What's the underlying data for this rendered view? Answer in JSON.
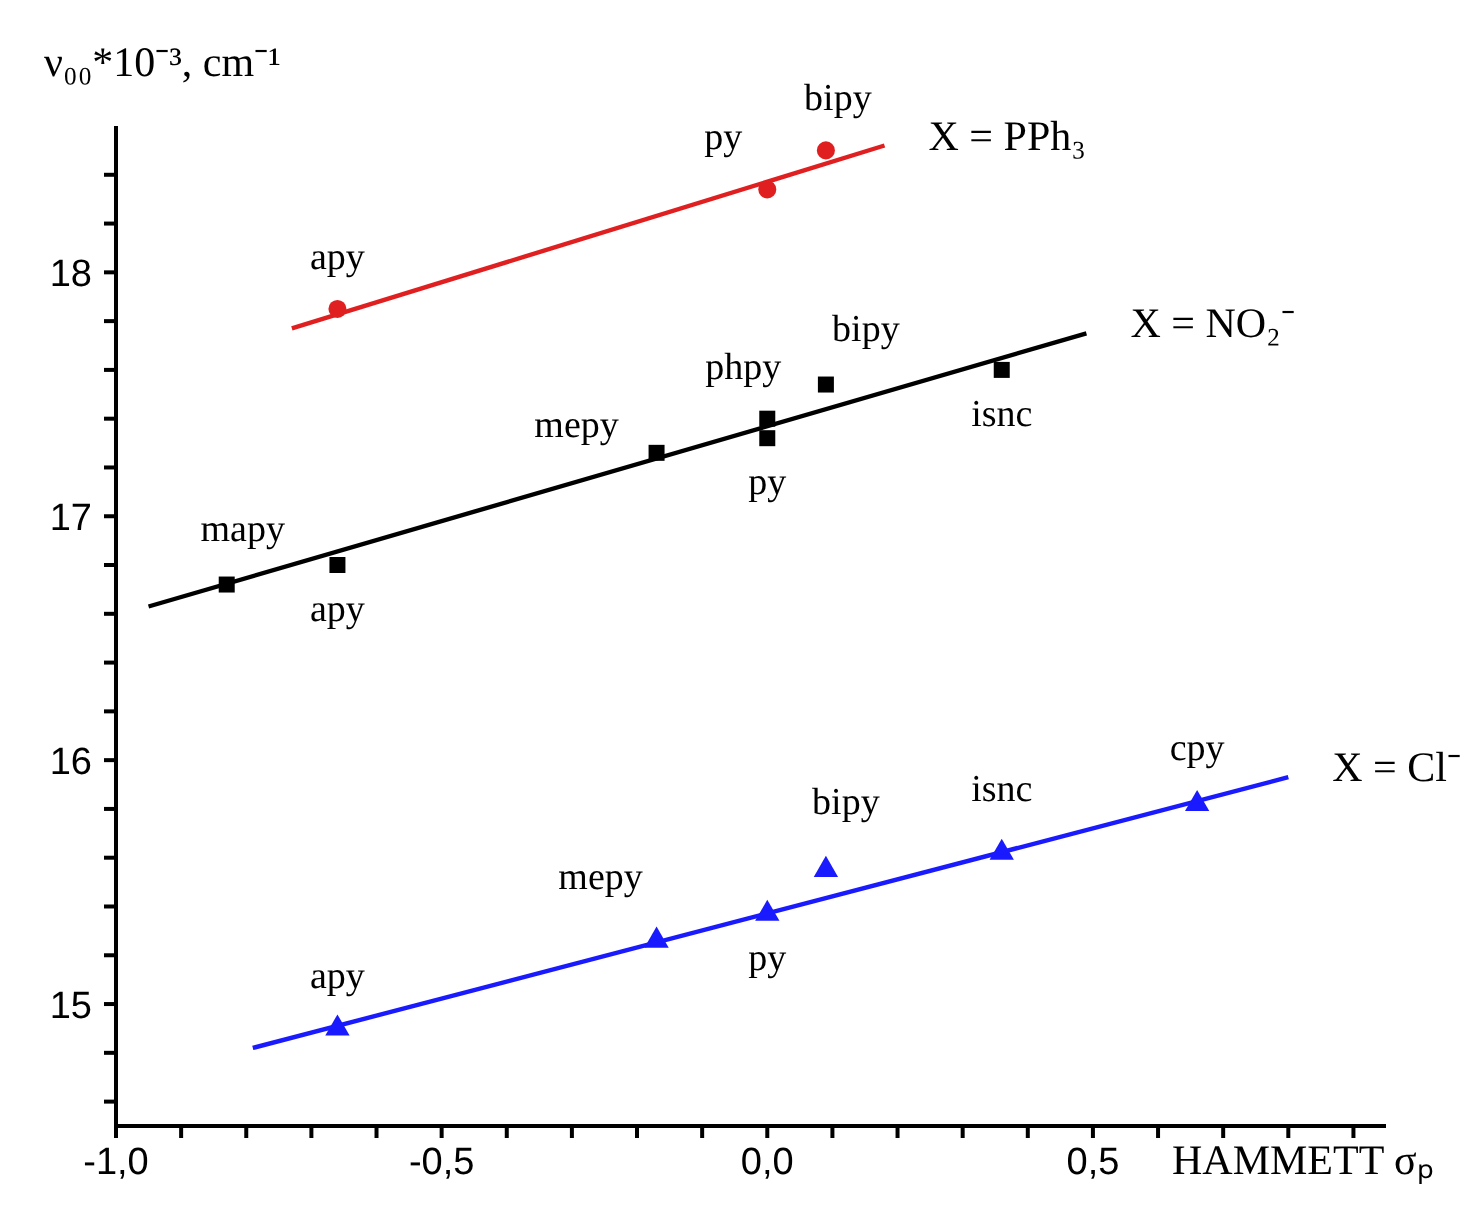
{
  "chart_data": {
    "type": "scatter",
    "xlabel": "HAMMETT σₚ",
    "ylabel": "ν₀₀*10⁻³, cm⁻¹",
    "xlim": [
      -1.0,
      0.95
    ],
    "ylim": [
      14.5,
      18.6
    ],
    "xticks": [
      {
        "value": -1.0,
        "label": "-1,0"
      },
      {
        "value": -0.9,
        "label": null
      },
      {
        "value": -0.8,
        "label": null
      },
      {
        "value": -0.7,
        "label": null
      },
      {
        "value": -0.6,
        "label": null
      },
      {
        "value": -0.5,
        "label": "-0,5"
      },
      {
        "value": -0.4,
        "label": null
      },
      {
        "value": -0.3,
        "label": null
      },
      {
        "value": -0.2,
        "label": null
      },
      {
        "value": -0.1,
        "label": null
      },
      {
        "value": 0.0,
        "label": "0,0"
      },
      {
        "value": 0.1,
        "label": null
      },
      {
        "value": 0.2,
        "label": null
      },
      {
        "value": 0.3,
        "label": null
      },
      {
        "value": 0.4,
        "label": null
      },
      {
        "value": 0.5,
        "label": "0,5"
      },
      {
        "value": 0.6,
        "label": null
      },
      {
        "value": 0.7,
        "label": null
      },
      {
        "value": 0.8,
        "label": null
      },
      {
        "value": 0.9,
        "label": null
      }
    ],
    "yticks": [
      {
        "value": 14.6,
        "label": null
      },
      {
        "value": 14.8,
        "label": null
      },
      15,
      {
        "value": 15.2,
        "label": null
      },
      {
        "value": 15.4,
        "label": null
      },
      {
        "value": 15.6,
        "label": null
      },
      {
        "value": 15.8,
        "label": null
      },
      16,
      {
        "value": 16.2,
        "label": null
      },
      {
        "value": 16.4,
        "label": null
      },
      {
        "value": 16.6,
        "label": null
      },
      {
        "value": 16.8,
        "label": null
      },
      17,
      {
        "value": 17.2,
        "label": null
      },
      {
        "value": 17.4,
        "label": null
      },
      {
        "value": 17.6,
        "label": null
      },
      {
        "value": 17.8,
        "label": null
      },
      18,
      {
        "value": 18.2,
        "label": null
      },
      {
        "value": 18.4,
        "label": null
      }
    ],
    "series": [
      {
        "name": "X = PPh₃",
        "marker": "circle",
        "color": "#e02020",
        "x": [
          -0.66,
          0.0,
          0.09
        ],
        "values": [
          17.85,
          18.34,
          18.5
        ]
      },
      {
        "type": "line",
        "marker": "none",
        "line_style": "solid",
        "color": "#e02020",
        "x": [
          -0.73,
          0.18
        ],
        "values": [
          17.77,
          18.52
        ]
      },
      {
        "name": "X = NO₂⁻",
        "marker": "square",
        "color": "#000000",
        "x": [
          -0.83,
          -0.66,
          -0.17,
          0.0,
          0.0,
          0.09,
          0.36
        ],
        "values": [
          16.72,
          16.8,
          17.26,
          17.32,
          17.4,
          17.54,
          17.6
        ]
      },
      {
        "type": "line",
        "marker": "none",
        "line_style": "solid",
        "color": "#000000",
        "x": [
          -0.95,
          0.49
        ],
        "values": [
          16.63,
          17.75
        ]
      },
      {
        "name": "X = Cl⁻",
        "marker": "triangle",
        "color": "#1a1aff",
        "x": [
          -0.66,
          -0.17,
          0.0,
          0.09,
          0.36,
          0.66
        ],
        "values": [
          14.9,
          15.26,
          15.37,
          15.55,
          15.62,
          15.82
        ]
      },
      {
        "type": "line",
        "marker": "none",
        "line_style": "solid",
        "color": "#1a1aff",
        "x": [
          -0.79,
          0.8
        ],
        "values": [
          14.82,
          15.93
        ]
      }
    ],
    "annotations": [
      {
        "text": "apy",
        "x": -0.66,
        "y": 17.85
      },
      {
        "text": "py",
        "x": 0.0,
        "y": 18.34
      },
      {
        "text": "bipy",
        "x": 0.09,
        "y": 18.5
      },
      {
        "text": "mapy",
        "x": -0.83,
        "y": 16.72
      },
      {
        "text": "apy",
        "x": -0.66,
        "y": 16.8
      },
      {
        "text": "mepy",
        "x": -0.17,
        "y": 17.26
      },
      {
        "text": "py",
        "x": 0.0,
        "y": 17.32
      },
      {
        "text": "phpy",
        "x": 0.0,
        "y": 17.4
      },
      {
        "text": "bipy",
        "x": 0.09,
        "y": 17.54
      },
      {
        "text": "isnc",
        "x": 0.36,
        "y": 17.6
      },
      {
        "text": "apy",
        "x": -0.66,
        "y": 14.9
      },
      {
        "text": "mepy",
        "x": -0.17,
        "y": 15.26
      },
      {
        "text": "py",
        "x": 0.0,
        "y": 15.37
      },
      {
        "text": "bipy",
        "x": 0.09,
        "y": 15.55
      },
      {
        "text": "isnc",
        "x": 0.36,
        "y": 15.62
      },
      {
        "text": "cpy",
        "x": 0.66,
        "y": 15.82
      }
    ]
  }
}
